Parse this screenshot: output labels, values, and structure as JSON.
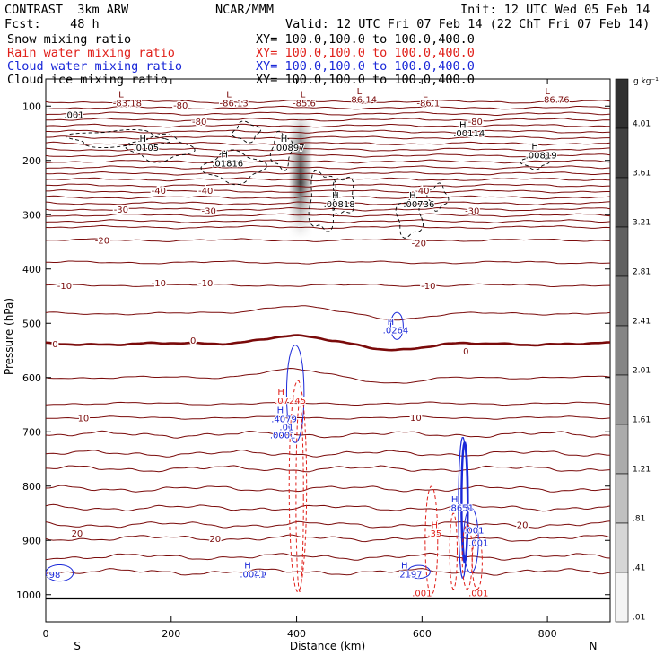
{
  "header": {
    "left_title": "CONTRAST  3km ARW",
    "center_title": "NCAR/MMM",
    "init": "Init: 12 UTC Wed 05 Feb 14",
    "fcst": "Fcst:    48 h",
    "valid": "Valid: 12 UTC Fri 07 Feb 14 (22 ChT Fri 07 Feb 14)",
    "fields": [
      {
        "name": "Snow mixing ratio",
        "xy": "XY= 100.0,100.0 to 100.0,400.0",
        "color": "#000000"
      },
      {
        "name": "Rain water mixing ratio",
        "xy": "XY= 100.0,100.0 to 100.0,400.0",
        "color": "#e0201a"
      },
      {
        "name": "Cloud water mixing ratio",
        "xy": "XY= 100.0,100.0 to 100.0,400.0",
        "color": "#1a28d8"
      },
      {
        "name": "Cloud ice mixing ratio",
        "xy": "XY= 100.0,100.0 to 100.0,400.0",
        "color": "#000000"
      }
    ]
  },
  "chart_data": {
    "type": "cross-section contour",
    "xlabel": "Distance (km)",
    "ylabel": "Pressure (hPa)",
    "x_range": [
      0,
      900
    ],
    "y_range": [
      1050,
      50
    ],
    "x_ticks": [
      0,
      200,
      400,
      600,
      800
    ],
    "y_ticks": [
      100,
      200,
      300,
      400,
      500,
      600,
      700,
      800,
      900,
      1000
    ],
    "x_end_labels": {
      "left": "S",
      "right": "N"
    },
    "colorbar": {
      "units": "g kg⁻¹",
      "levels": [
        "4.01",
        "3.61",
        "3.21",
        "2.81",
        "2.41",
        "2.01",
        "1.61",
        "1.21",
        ".81",
        ".41",
        ".01"
      ],
      "colors": [
        "#303030",
        "#404040",
        "#505050",
        "#606060",
        "#727272",
        "#858585",
        "#989898",
        "#ababab",
        "#c0c0c0",
        "#d6d6d6",
        "#f4f4f4"
      ]
    },
    "temperature_isotherms": {
      "levels_labeled": [
        {
          "label": "-80",
          "x": 215,
          "p": 98
        },
        {
          "label": "-80",
          "x": 245,
          "p": 128
        },
        {
          "label": "-80",
          "x": 685,
          "p": 128
        },
        {
          "label": "-40",
          "x": 180,
          "p": 255
        },
        {
          "label": "-40",
          "x": 255,
          "p": 255
        },
        {
          "label": "-40",
          "x": 600,
          "p": 255
        },
        {
          "label": "-30",
          "x": 120,
          "p": 290
        },
        {
          "label": "-30",
          "x": 260,
          "p": 292
        },
        {
          "label": "-30",
          "x": 680,
          "p": 292
        },
        {
          "label": "-20",
          "x": 90,
          "p": 347
        },
        {
          "label": "-20",
          "x": 595,
          "p": 352
        },
        {
          "label": "-10",
          "x": 30,
          "p": 430
        },
        {
          "label": "-10",
          "x": 180,
          "p": 425
        },
        {
          "label": "-10",
          "x": 255,
          "p": 425
        },
        {
          "label": "-10",
          "x": 610,
          "p": 430
        },
        {
          "label": "0",
          "x": 15,
          "p": 538
        },
        {
          "label": "0",
          "x": 235,
          "p": 531
        },
        {
          "label": "0",
          "x": 670,
          "p": 551
        },
        {
          "label": "10",
          "x": 60,
          "p": 674
        },
        {
          "label": "10",
          "x": 590,
          "p": 673
        },
        {
          "label": "20",
          "x": 50,
          "p": 886
        },
        {
          "label": "20",
          "x": 270,
          "p": 896
        },
        {
          "label": "20",
          "x": 760,
          "p": 871
        }
      ]
    },
    "annotations": [
      {
        "text": "L",
        "x": 120,
        "p": 84,
        "color": "#7a0a0a"
      },
      {
        "text": "-83.18",
        "x": 130,
        "p": 100,
        "color": "#7a0a0a"
      },
      {
        "text": "L",
        "x": 292,
        "p": 84,
        "color": "#7a0a0a"
      },
      {
        "text": "-86.13",
        "x": 300,
        "p": 100,
        "color": "#7a0a0a"
      },
      {
        "text": "L",
        "x": 410,
        "p": 84,
        "color": "#7a0a0a"
      },
      {
        "text": "-85.6",
        "x": 412,
        "p": 100,
        "color": "#7a0a0a"
      },
      {
        "text": "L",
        "x": 500,
        "p": 78,
        "color": "#7a0a0a"
      },
      {
        "text": "-86.14",
        "x": 505,
        "p": 94,
        "color": "#7a0a0a"
      },
      {
        "text": "L",
        "x": 605,
        "p": 84,
        "color": "#7a0a0a"
      },
      {
        "text": "-86.1",
        "x": 610,
        "p": 100,
        "color": "#7a0a0a"
      },
      {
        "text": "L",
        "x": 800,
        "p": 78,
        "color": "#7a0a0a"
      },
      {
        "text": "-86.76",
        "x": 812,
        "p": 94,
        "color": "#7a0a0a"
      },
      {
        "text": ".001",
        "x": 45,
        "p": 122,
        "color": "#000000"
      },
      {
        "text": "H",
        "x": 155,
        "p": 166,
        "color": "#000000"
      },
      {
        "text": ".0105",
        "x": 160,
        "p": 182,
        "color": "#000000"
      },
      {
        "text": "H",
        "x": 285,
        "p": 195,
        "color": "#000000"
      },
      {
        "text": ".01816",
        "x": 290,
        "p": 211,
        "color": "#000000"
      },
      {
        "text": "H",
        "x": 380,
        "p": 166,
        "color": "#000000"
      },
      {
        "text": ".00897",
        "x": 388,
        "p": 182,
        "color": "#000000"
      },
      {
        "text": "H",
        "x": 665,
        "p": 140,
        "color": "#000000"
      },
      {
        "text": ".00114",
        "x": 675,
        "p": 156,
        "color": "#000000"
      },
      {
        "text": "H",
        "x": 780,
        "p": 180,
        "color": "#000000"
      },
      {
        "text": ".00819",
        "x": 790,
        "p": 196,
        "color": "#000000"
      },
      {
        "text": "H",
        "x": 462,
        "p": 270,
        "color": "#000000"
      },
      {
        "text": ".00818",
        "x": 468,
        "p": 286,
        "color": "#000000"
      },
      {
        "text": "H",
        "x": 585,
        "p": 270,
        "color": "#000000"
      },
      {
        "text": ".00736",
        "x": 595,
        "p": 286,
        "color": "#000000"
      },
      {
        "text": "H",
        "x": 550,
        "p": 503,
        "color": "#1a28d8"
      },
      {
        "text": ".0264",
        "x": 558,
        "p": 519,
        "color": "#1a28d8"
      },
      {
        "text": "H",
        "x": 375,
        "p": 632,
        "color": "#e0201a"
      },
      {
        "text": ".07245",
        "x": 390,
        "p": 648,
        "color": "#e0201a"
      },
      {
        "text": "H",
        "x": 374,
        "p": 666,
        "color": "#1a28d8"
      },
      {
        "text": ".4079",
        "x": 380,
        "p": 682,
        "color": "#1a28d8"
      },
      {
        "text": ".01",
        "x": 384,
        "p": 697,
        "color": "#1a28d8"
      },
      {
        "text": ".0001",
        "x": 378,
        "p": 712,
        "color": "#1a28d8"
      },
      {
        "text": "H",
        "x": 322,
        "p": 952,
        "color": "#1a28d8"
      },
      {
        "text": ".0041",
        "x": 330,
        "p": 968,
        "color": "#1a28d8"
      },
      {
        "text": "H",
        "x": 572,
        "p": 952,
        "color": "#1a28d8"
      },
      {
        "text": ".2197",
        "x": 580,
        "p": 968,
        "color": "#1a28d8"
      },
      {
        "text": "H",
        "x": 652,
        "p": 830,
        "color": "#1a28d8"
      },
      {
        "text": ".8651",
        "x": 662,
        "p": 846,
        "color": "#1a28d8"
      },
      {
        "text": "H",
        "x": 620,
        "p": 877,
        "color": "#e0201a"
      },
      {
        "text": ".35",
        "x": 620,
        "p": 893,
        "color": "#e0201a"
      },
      {
        "text": ".001",
        "x": 683,
        "p": 887,
        "color": "#1a28d8"
      },
      {
        "text": ".001",
        "x": 690,
        "p": 910,
        "color": "#1a28d8"
      },
      {
        "text": ".001",
        "x": 600,
        "p": 1003,
        "color": "#e0201a"
      },
      {
        "text": ".001",
        "x": 690,
        "p": 1003,
        "color": "#e0201a"
      },
      {
        "text": ".98",
        "x": 12,
        "p": 969,
        "color": "#1a28d8"
      }
    ]
  }
}
